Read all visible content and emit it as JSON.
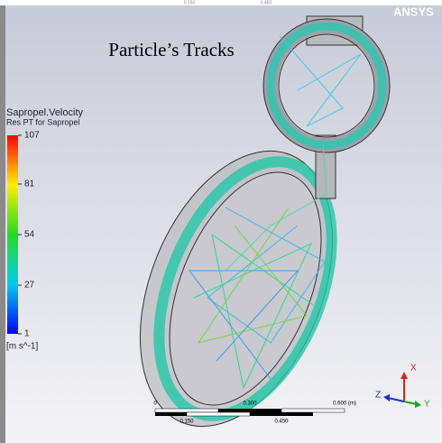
{
  "title": "Particle’s Tracks",
  "brand": "ANSYS",
  "top_scale": {
    "labels": [
      "0.150",
      "0.450"
    ]
  },
  "legend": {
    "title": "Sapropel.Velocity",
    "subtitle": "Res PT for Sapropel",
    "ticks": [
      107,
      81,
      54,
      27,
      1
    ],
    "unit": "[m s^-1]"
  },
  "scale_bar": {
    "top_labels": [
      "0",
      "0.300",
      "0.600 (m)"
    ],
    "bottom_labels": [
      "0.150",
      "0.450"
    ]
  },
  "triad": {
    "x": "X",
    "y": "Y",
    "z": "Z"
  }
}
